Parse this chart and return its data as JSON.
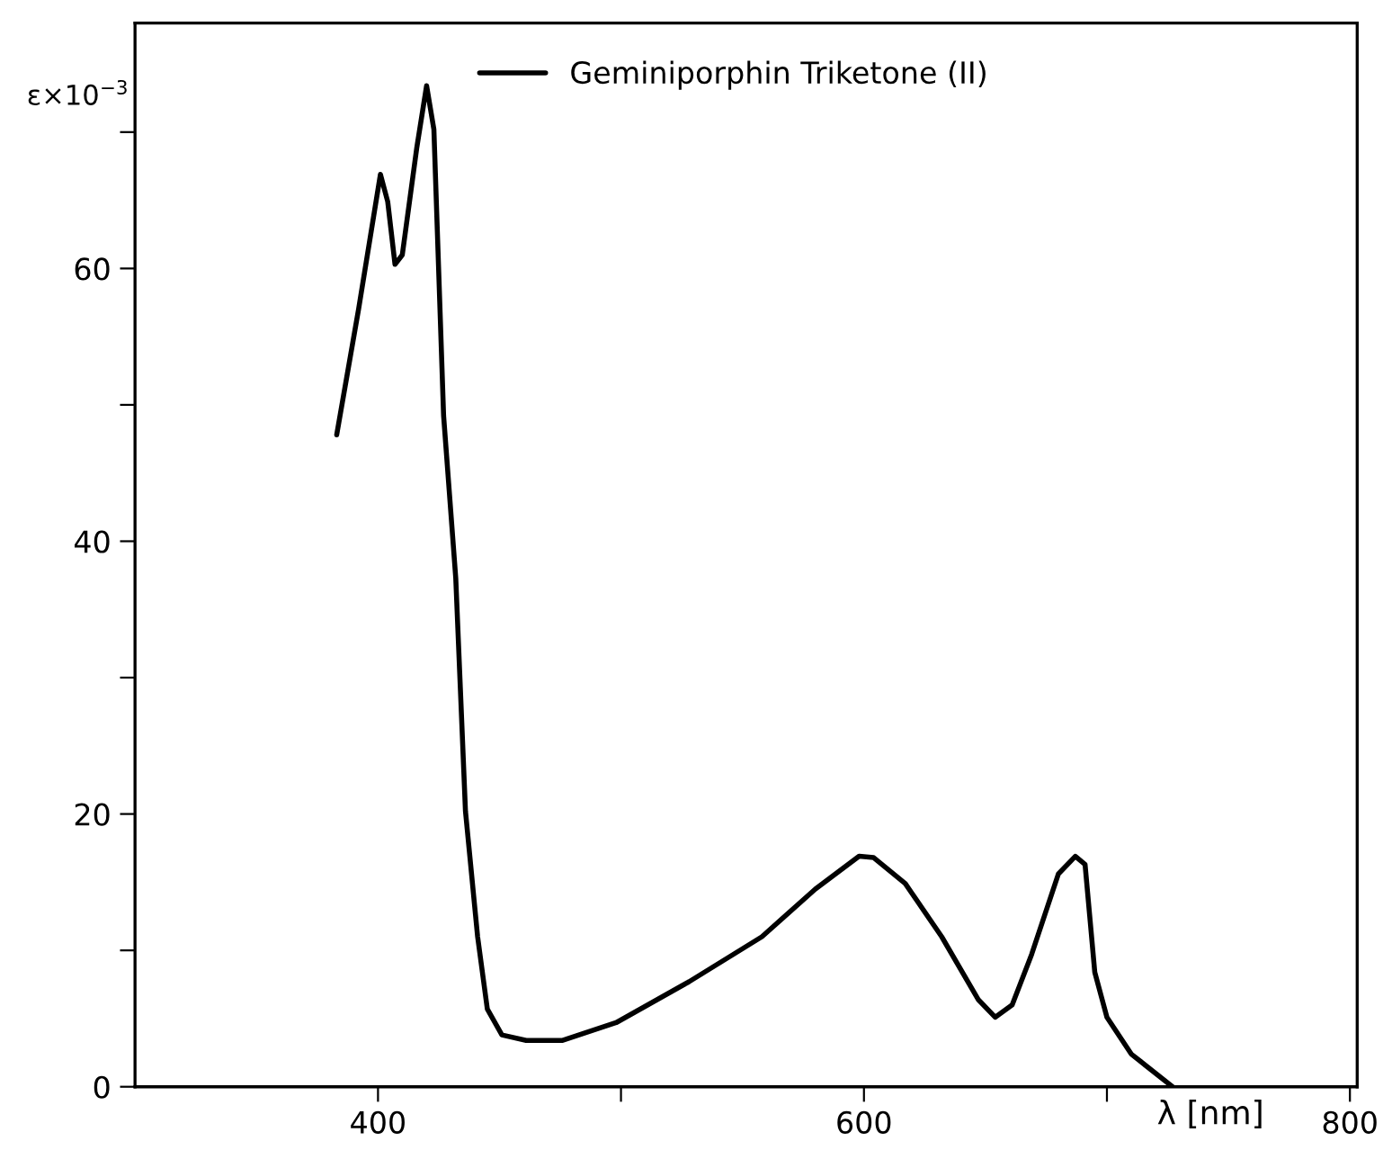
{
  "chart_data": {
    "type": "line",
    "xlabel": "λ [nm]",
    "ylabel": "ε×10$^{−3}$",
    "xlim": [
      300,
      803
    ],
    "ylim": [
      0,
      78
    ],
    "xticks": [
      400,
      {
        "value": 500,
        "label": null
      },
      600,
      {
        "value": 700,
        "label": null
      },
      800
    ],
    "yticks": [
      0,
      {
        "value": 10,
        "label": null
      },
      20,
      {
        "value": 30,
        "label": null
      },
      40,
      {
        "value": 50,
        "label": null
      },
      60,
      {
        "value": 70,
        "label": null
      }
    ],
    "grid": false,
    "legend": "top right",
    "line_style": "solid",
    "marker": "none",
    "series": [
      {
        "name": "Geminiporphin Triketone (II)",
        "color": "#000000",
        "x": [
          383,
          392,
          401,
          404,
          407,
          410,
          416,
          420,
          423,
          427,
          432,
          436,
          441,
          445,
          451,
          461,
          476,
          498,
          528,
          558,
          580,
          598,
          604,
          617,
          632,
          647,
          654,
          661,
          669,
          680,
          687,
          691,
          695,
          700,
          710,
          727
        ],
        "values": [
          47.8,
          57.0,
          66.9,
          64.9,
          60.3,
          61.0,
          68.9,
          73.4,
          70.2,
          49.2,
          37.3,
          20.2,
          11.0,
          5.7,
          3.8,
          3.4,
          3.4,
          4.7,
          7.7,
          11.0,
          14.5,
          16.9,
          16.8,
          14.9,
          11.0,
          6.4,
          5.1,
          6.0,
          9.7,
          15.6,
          16.9,
          16.3,
          8.4,
          5.1,
          2.4,
          0
        ]
      }
    ]
  }
}
